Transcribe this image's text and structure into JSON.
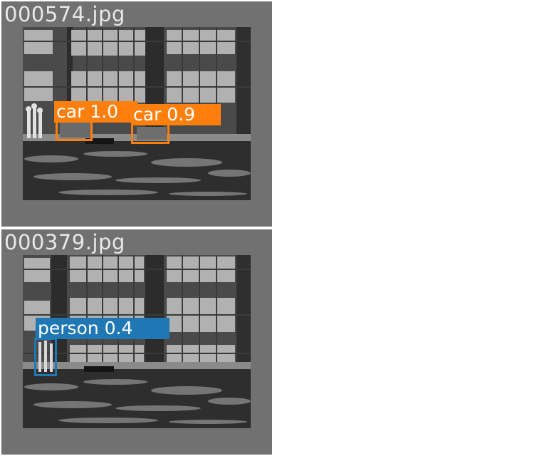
{
  "images": [
    {
      "filename": "000574.jpg",
      "detections": [
        {
          "label": "car 1.0",
          "color": "#ff7f0e"
        },
        {
          "label": "car 0.9",
          "color": "#ff7f0e"
        }
      ]
    },
    {
      "filename": "000379.jpg",
      "detections": [
        {
          "label": "person 0.4",
          "color": "#1f77b4"
        }
      ]
    }
  ]
}
